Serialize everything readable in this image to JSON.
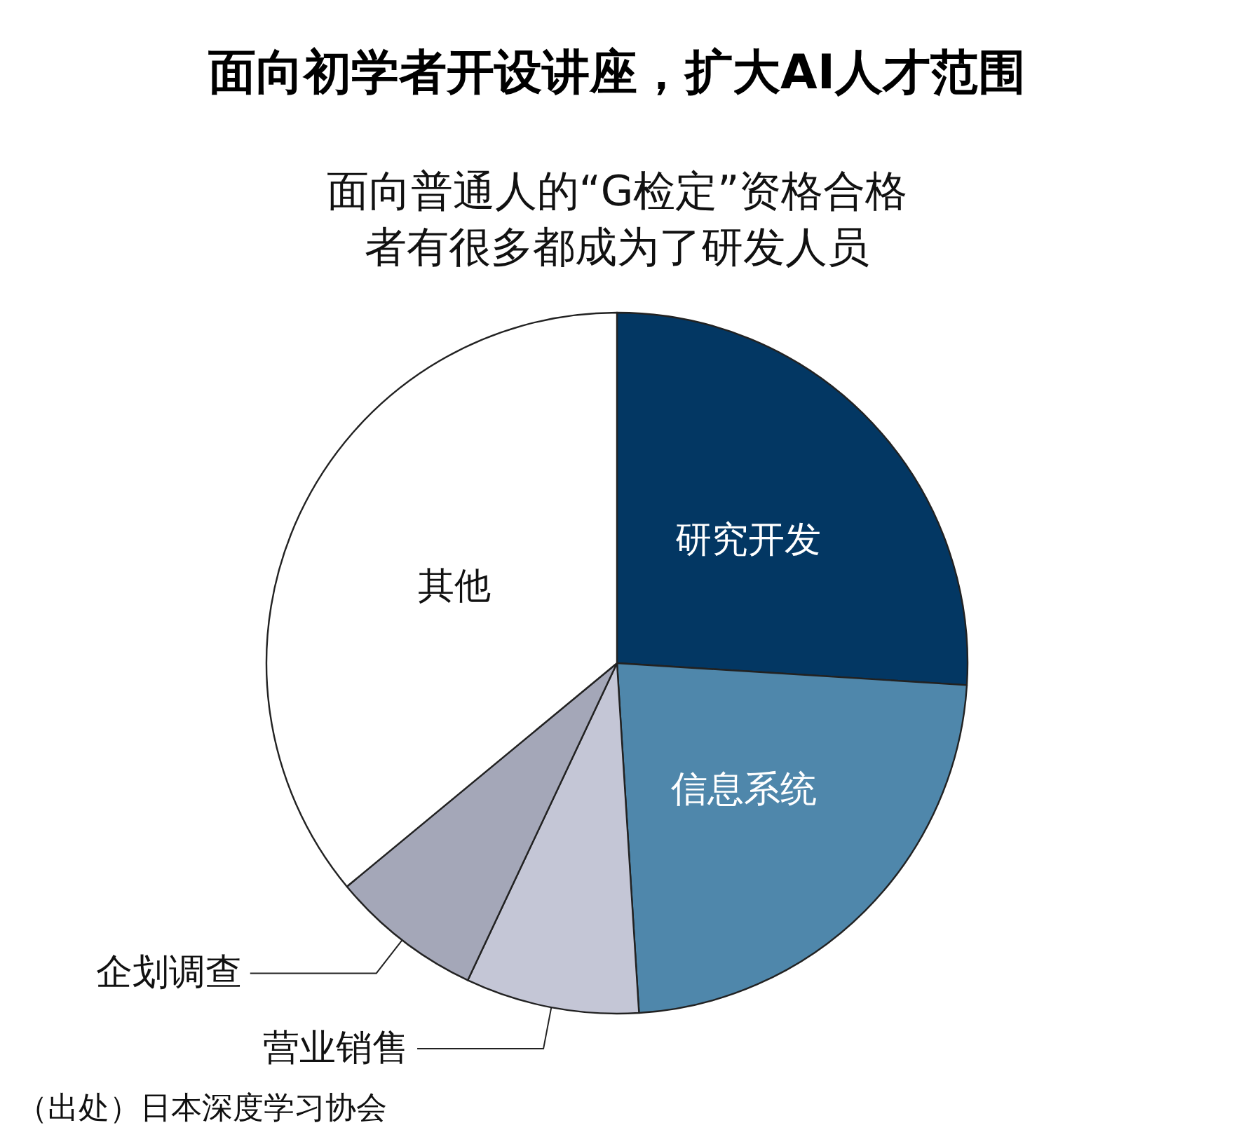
{
  "chart_data": {
    "type": "pie",
    "title": "面向初学者开设讲座，扩大AI人才范围",
    "subtitle": "面向普通人的“G检定”资格合格者有很多都成为了研发人员",
    "categories": [
      "研究开发",
      "信息系统",
      "营业销售",
      "企划调查",
      "其他"
    ],
    "values": [
      26,
      23,
      8,
      7,
      36
    ],
    "colors": [
      "#033763",
      "#4f87ab",
      "#c4c6d6",
      "#a4a7b8",
      "#ffffff"
    ],
    "annotations": [
      "（出处）日本深度学习协会"
    ],
    "legend": false
  }
}
